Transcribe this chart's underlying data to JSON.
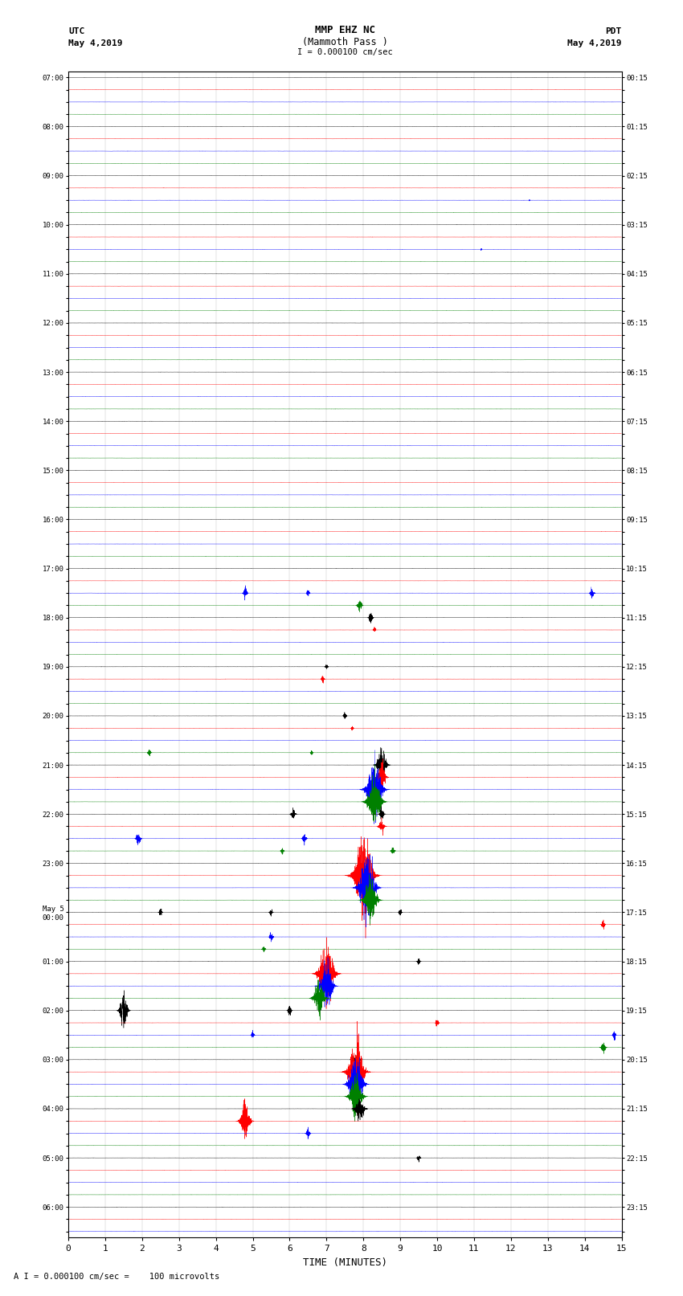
{
  "title_line1": "MMP EHZ NC",
  "title_line2": "(Mammoth Pass )",
  "scale_label": "I = 0.000100 cm/sec",
  "left_header_line1": "UTC",
  "left_header_line2": "May 4,2019",
  "right_header_line1": "PDT",
  "right_header_line2": "May 4,2019",
  "xlabel": "TIME (MINUTES)",
  "footer": "A I = 0.000100 cm/sec =    100 microvolts",
  "utc_labels": [
    "07:00",
    "",
    "",
    "",
    "08:00",
    "",
    "",
    "",
    "09:00",
    "",
    "",
    "",
    "10:00",
    "",
    "",
    "",
    "11:00",
    "",
    "",
    "",
    "12:00",
    "",
    "",
    "",
    "13:00",
    "",
    "",
    "",
    "14:00",
    "",
    "",
    "",
    "15:00",
    "",
    "",
    "",
    "16:00",
    "",
    "",
    "",
    "17:00",
    "",
    "",
    "",
    "18:00",
    "",
    "",
    "",
    "19:00",
    "",
    "",
    "",
    "20:00",
    "",
    "",
    "",
    "21:00",
    "",
    "",
    "",
    "22:00",
    "",
    "",
    "",
    "23:00",
    "",
    "",
    "",
    "May 5\n00:00",
    "",
    "",
    "",
    "01:00",
    "",
    "",
    "",
    "02:00",
    "",
    "",
    "",
    "03:00",
    "",
    "",
    "",
    "04:00",
    "",
    "",
    "",
    "05:00",
    "",
    "",
    "",
    "06:00",
    "",
    ""
  ],
  "pdt_labels": [
    "00:15",
    "",
    "",
    "",
    "01:15",
    "",
    "",
    "",
    "02:15",
    "",
    "",
    "",
    "03:15",
    "",
    "",
    "",
    "04:15",
    "",
    "",
    "",
    "05:15",
    "",
    "",
    "",
    "06:15",
    "",
    "",
    "",
    "07:15",
    "",
    "",
    "",
    "08:15",
    "",
    "",
    "",
    "09:15",
    "",
    "",
    "",
    "10:15",
    "",
    "",
    "",
    "11:15",
    "",
    "",
    "",
    "12:15",
    "",
    "",
    "",
    "13:15",
    "",
    "",
    "",
    "14:15",
    "",
    "",
    "",
    "15:15",
    "",
    "",
    "",
    "16:15",
    "",
    "",
    "",
    "17:15",
    "",
    "",
    "",
    "18:15",
    "",
    "",
    "",
    "19:15",
    "",
    "",
    "",
    "20:15",
    "",
    "",
    "",
    "21:15",
    "",
    "",
    "",
    "22:15",
    "",
    "",
    "",
    "23:15",
    "",
    ""
  ],
  "n_rows": 95,
  "n_minutes": 15,
  "colors_cycle": [
    "black",
    "red",
    "blue",
    "green"
  ],
  "bg_color": "white",
  "font_family": "monospace",
  "noise_base_std": 0.006,
  "noise_hf_std": 0.003,
  "row_scale": 0.45,
  "seed": 42,
  "events": [
    {
      "row": 10,
      "t": 12.5,
      "amp": 0.12,
      "dur": 0.05
    },
    {
      "row": 14,
      "t": 11.2,
      "amp": 0.15,
      "dur": 0.08
    },
    {
      "row": 42,
      "t": 4.8,
      "amp": 0.5,
      "dur": 0.25
    },
    {
      "row": 42,
      "t": 6.5,
      "amp": 0.35,
      "dur": 0.18
    },
    {
      "row": 42,
      "t": 14.2,
      "amp": 0.45,
      "dur": 0.25
    },
    {
      "row": 43,
      "t": 7.9,
      "amp": 0.5,
      "dur": 0.3
    },
    {
      "row": 44,
      "t": 8.2,
      "amp": 0.5,
      "dur": 0.25
    },
    {
      "row": 45,
      "t": 8.3,
      "amp": 0.3,
      "dur": 0.15
    },
    {
      "row": 48,
      "t": 7.0,
      "amp": 0.25,
      "dur": 0.18
    },
    {
      "row": 49,
      "t": 6.9,
      "amp": 0.3,
      "dur": 0.2
    },
    {
      "row": 52,
      "t": 7.5,
      "amp": 0.28,
      "dur": 0.2
    },
    {
      "row": 53,
      "t": 7.7,
      "amp": 0.2,
      "dur": 0.15
    },
    {
      "row": 55,
      "t": 2.2,
      "amp": 0.35,
      "dur": 0.2
    },
    {
      "row": 55,
      "t": 6.6,
      "amp": 0.25,
      "dur": 0.15
    },
    {
      "row": 56,
      "t": 8.5,
      "amp": 1.5,
      "dur": 0.6
    },
    {
      "row": 57,
      "t": 8.5,
      "amp": 1.2,
      "dur": 0.5
    },
    {
      "row": 58,
      "t": 8.3,
      "amp": 2.5,
      "dur": 1.0
    },
    {
      "row": 59,
      "t": 8.3,
      "amp": 2.0,
      "dur": 0.9
    },
    {
      "row": 60,
      "t": 6.1,
      "amp": 0.4,
      "dur": 0.3
    },
    {
      "row": 60,
      "t": 8.5,
      "amp": 0.5,
      "dur": 0.3
    },
    {
      "row": 61,
      "t": 8.5,
      "amp": 0.5,
      "dur": 0.4
    },
    {
      "row": 62,
      "t": 1.9,
      "amp": 0.5,
      "dur": 0.3
    },
    {
      "row": 62,
      "t": 6.4,
      "amp": 0.4,
      "dur": 0.25
    },
    {
      "row": 63,
      "t": 5.8,
      "amp": 0.3,
      "dur": 0.2
    },
    {
      "row": 63,
      "t": 8.8,
      "amp": 0.35,
      "dur": 0.25
    },
    {
      "row": 65,
      "t": 8.0,
      "amp": 3.5,
      "dur": 1.2
    },
    {
      "row": 66,
      "t": 8.1,
      "amp": 3.0,
      "dur": 1.0
    },
    {
      "row": 67,
      "t": 8.2,
      "amp": 2.0,
      "dur": 0.8
    },
    {
      "row": 68,
      "t": 2.5,
      "amp": 0.35,
      "dur": 0.2
    },
    {
      "row": 68,
      "t": 5.5,
      "amp": 0.35,
      "dur": 0.2
    },
    {
      "row": 68,
      "t": 9.0,
      "amp": 0.35,
      "dur": 0.2
    },
    {
      "row": 69,
      "t": 14.5,
      "amp": 0.4,
      "dur": 0.2
    },
    {
      "row": 70,
      "t": 5.5,
      "amp": 0.4,
      "dur": 0.25
    },
    {
      "row": 71,
      "t": 5.3,
      "amp": 0.3,
      "dur": 0.2
    },
    {
      "row": 72,
      "t": 9.5,
      "amp": 0.3,
      "dur": 0.2
    },
    {
      "row": 73,
      "t": 7.0,
      "amp": 2.5,
      "dur": 1.0
    },
    {
      "row": 74,
      "t": 7.0,
      "amp": 2.0,
      "dur": 0.8
    },
    {
      "row": 75,
      "t": 6.8,
      "amp": 1.5,
      "dur": 0.7
    },
    {
      "row": 76,
      "t": 1.5,
      "amp": 1.5,
      "dur": 0.5
    },
    {
      "row": 76,
      "t": 6.0,
      "amp": 0.4,
      "dur": 0.25
    },
    {
      "row": 77,
      "t": 10.0,
      "amp": 0.35,
      "dur": 0.2
    },
    {
      "row": 78,
      "t": 5.0,
      "amp": 0.35,
      "dur": 0.2
    },
    {
      "row": 78,
      "t": 14.8,
      "amp": 0.4,
      "dur": 0.2
    },
    {
      "row": 79,
      "t": 14.5,
      "amp": 0.5,
      "dur": 0.3
    },
    {
      "row": 80,
      "t": 7.8,
      "dur": 0.5,
      "amp": 0.5
    },
    {
      "row": 81,
      "t": 7.8,
      "amp": 2.8,
      "dur": 1.0
    },
    {
      "row": 82,
      "t": 7.8,
      "amp": 2.5,
      "dur": 0.9
    },
    {
      "row": 83,
      "t": 7.8,
      "amp": 1.8,
      "dur": 0.8
    },
    {
      "row": 84,
      "t": 7.9,
      "amp": 1.0,
      "dur": 0.6
    },
    {
      "row": 85,
      "t": 4.8,
      "amp": 1.8,
      "dur": 0.6
    },
    {
      "row": 86,
      "t": 6.5,
      "amp": 0.4,
      "dur": 0.25
    },
    {
      "row": 88,
      "t": 9.5,
      "amp": 0.35,
      "dur": 0.2
    }
  ]
}
